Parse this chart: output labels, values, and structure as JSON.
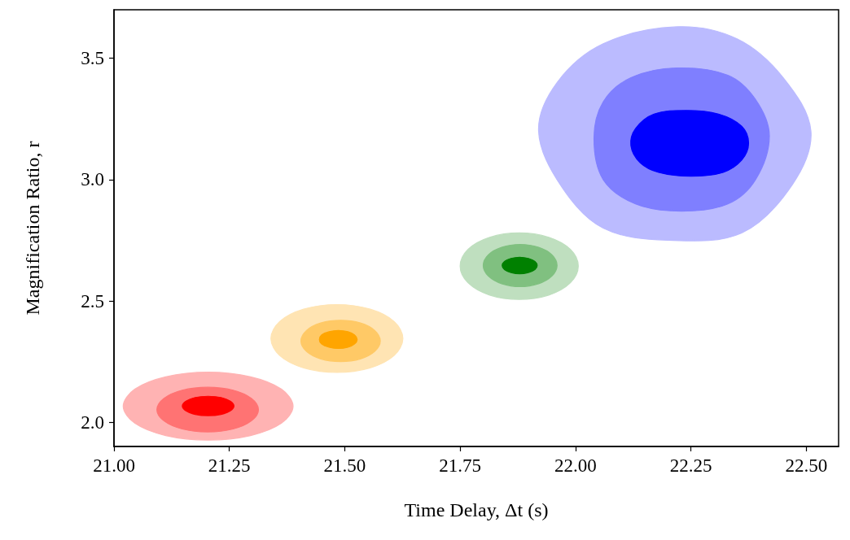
{
  "chart_data": {
    "type": "area",
    "xlabel": "Time Delay, Δt (s)",
    "ylabel": "Magnification Ratio, r",
    "xlim": [
      21.0,
      22.57
    ],
    "ylim": [
      1.9,
      3.7
    ],
    "xticks": [
      {
        "value": 21,
        "label": "21.00"
      },
      {
        "value": 21.25,
        "label": "21.25"
      },
      {
        "value": 21.5,
        "label": "21.50"
      },
      {
        "value": 21.75,
        "label": "21.75"
      },
      {
        "value": 22,
        "label": "22.00"
      },
      {
        "value": 22.25,
        "label": "22.25"
      },
      {
        "value": 22.5,
        "label": "22.50"
      }
    ],
    "yticks": [
      {
        "value": 2,
        "label": "2.0"
      },
      {
        "value": 2.5,
        "label": "2.5"
      },
      {
        "value": 3,
        "label": "3.0"
      },
      {
        "value": 3.5,
        "label": "3.5"
      }
    ],
    "grid": false,
    "legend": false,
    "series": [
      {
        "color": "#ffb3b3",
        "x": [
          21.388,
          21.363,
          21.296,
          21.204,
          21.112,
          21.045,
          21.02,
          21.045,
          21.112,
          21.204,
          21.296,
          21.363
        ],
        "values": [
          2.066,
          2.136,
          2.187,
          2.206,
          2.187,
          2.136,
          2.066,
          1.996,
          1.945,
          1.926,
          1.945,
          1.996
        ]
      },
      {
        "color": "#ff7373",
        "x": [
          21.313,
          21.298,
          21.258,
          21.203,
          21.148,
          21.108,
          21.093,
          21.108,
          21.148,
          21.203,
          21.258,
          21.298
        ],
        "values": [
          2.052,
          2.098,
          2.132,
          2.144,
          2.132,
          2.098,
          2.052,
          2.006,
          1.972,
          1.96,
          1.972,
          2.006
        ]
      },
      {
        "color": "#ff0000",
        "x": [
          21.26,
          21.252,
          21.232,
          21.204,
          21.176,
          21.156,
          21.148,
          21.156,
          21.176,
          21.204,
          21.232,
          21.252
        ],
        "values": [
          2.067,
          2.087,
          2.102,
          2.107,
          2.102,
          2.087,
          2.067,
          2.047,
          2.032,
          2.027,
          2.032,
          2.047
        ]
      },
      {
        "color": "#ffe4b3",
        "x": [
          21.626,
          21.607,
          21.555,
          21.483,
          21.411,
          21.359,
          21.34,
          21.359,
          21.411,
          21.483,
          21.555,
          21.607
        ],
        "values": [
          2.345,
          2.415,
          2.466,
          2.485,
          2.466,
          2.415,
          2.345,
          2.275,
          2.224,
          2.205,
          2.224,
          2.275
        ]
      },
      {
        "color": "#ffc966",
        "x": [
          21.577,
          21.565,
          21.534,
          21.491,
          21.448,
          21.417,
          21.405,
          21.417,
          21.448,
          21.491,
          21.534,
          21.565
        ],
        "values": [
          2.335,
          2.378,
          2.409,
          2.42,
          2.409,
          2.378,
          2.335,
          2.292,
          2.261,
          2.25,
          2.261,
          2.292
        ]
      },
      {
        "color": "#ffa500",
        "x": [
          21.527,
          21.521,
          21.507,
          21.486,
          21.466,
          21.45,
          21.445,
          21.45,
          21.466,
          21.486,
          21.507,
          21.521
        ],
        "values": [
          2.341,
          2.36,
          2.373,
          2.378,
          2.373,
          2.36,
          2.341,
          2.322,
          2.309,
          2.304,
          2.309,
          2.322
        ]
      },
      {
        "color": "#bfdfbf",
        "x": [
          22.006,
          21.989,
          21.942,
          21.878,
          21.814,
          21.767,
          21.75,
          21.767,
          21.814,
          21.878,
          21.942,
          21.989
        ],
        "values": [
          2.643,
          2.712,
          2.762,
          2.78,
          2.762,
          2.712,
          2.643,
          2.575,
          2.524,
          2.506,
          2.524,
          2.575
        ]
      },
      {
        "color": "#80c080",
        "x": [
          21.96,
          21.949,
          21.92,
          21.88,
          21.84,
          21.811,
          21.8,
          21.811,
          21.84,
          21.88,
          21.92,
          21.949
        ],
        "values": [
          2.646,
          2.69,
          2.721,
          2.733,
          2.721,
          2.69,
          2.646,
          2.603,
          2.571,
          2.559,
          2.571,
          2.603
        ]
      },
      {
        "color": "#008000",
        "x": [
          21.917,
          21.912,
          21.898,
          21.879,
          21.86,
          21.846,
          21.841,
          21.846,
          21.86,
          21.879,
          21.898,
          21.912
        ],
        "values": [
          2.646,
          2.663,
          2.675,
          2.68,
          2.675,
          2.663,
          2.646,
          2.629,
          2.617,
          2.612,
          2.617,
          2.629
        ]
      },
      {
        "color": "#bbbbff",
        "x": [
          22.51,
          22.45,
          22.35,
          22.22,
          22.06,
          21.96,
          21.92,
          21.97,
          22.06,
          22.2,
          22.36,
          22.47
        ],
        "values": [
          3.2,
          3.42,
          3.58,
          3.63,
          3.56,
          3.4,
          3.2,
          2.97,
          2.8,
          2.75,
          2.78,
          2.98
        ]
      },
      {
        "color": "#7f7fff",
        "x": [
          22.42,
          22.39,
          22.33,
          22.22,
          22.12,
          22.06,
          22.04,
          22.06,
          22.13,
          22.23,
          22.33,
          22.39
        ],
        "values": [
          3.18,
          3.33,
          3.43,
          3.46,
          3.42,
          3.32,
          3.17,
          3.0,
          2.9,
          2.87,
          2.9,
          3.0
        ]
      },
      {
        "color": "#0000ff",
        "x": [
          22.375,
          22.36,
          22.31,
          22.24,
          22.17,
          22.13,
          22.12,
          22.14,
          22.18,
          22.25,
          22.32,
          22.36
        ],
        "values": [
          3.15,
          3.22,
          3.27,
          3.285,
          3.27,
          3.21,
          3.14,
          3.07,
          3.03,
          3.014,
          3.03,
          3.08
        ]
      }
    ]
  }
}
